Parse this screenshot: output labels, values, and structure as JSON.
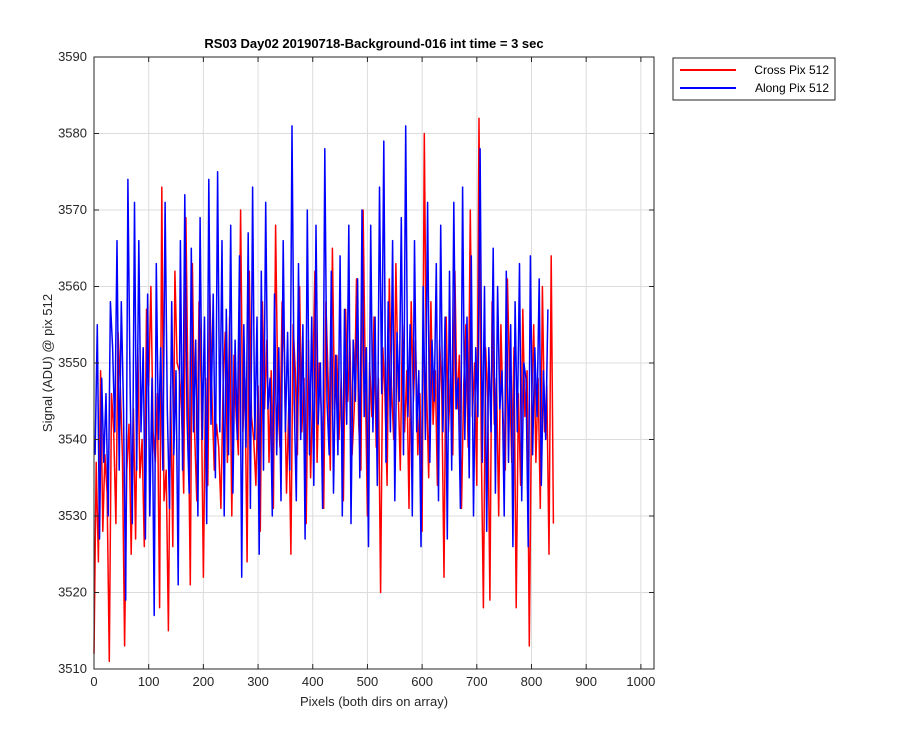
{
  "chart_data": {
    "type": "line",
    "title": "RS03 Day02 20190718-Background-016 int time = 3 sec",
    "xlabel": "Pixels (both dirs on array)",
    "ylabel": "Signal (ADU) @ pix 512",
    "xlim": [
      0,
      1024
    ],
    "ylim": [
      3510,
      3590
    ],
    "xticks": [
      0,
      100,
      200,
      300,
      400,
      500,
      600,
      700,
      800,
      900,
      1000
    ],
    "yticks": [
      3510,
      3520,
      3530,
      3540,
      3550,
      3560,
      3570,
      3580,
      3590
    ],
    "grid": true,
    "legend_position": "outside top-right",
    "series": [
      {
        "name": "Cross Pix 512",
        "color": "#ff0000",
        "x_start": 0,
        "x_step": 4,
        "values": [
          3512,
          3537,
          3524,
          3549,
          3528,
          3538,
          3533,
          3511,
          3546,
          3541,
          3529,
          3554,
          3547,
          3538,
          3513,
          3536,
          3542,
          3525,
          3544,
          3527,
          3552,
          3535,
          3540,
          3526,
          3557,
          3547,
          3560,
          3541,
          3537,
          3546,
          3518,
          3573,
          3532,
          3536,
          3515,
          3547,
          3526,
          3562,
          3550,
          3549,
          3544,
          3533,
          3569,
          3545,
          3521,
          3563,
          3541,
          3532,
          3558,
          3547,
          3522,
          3548,
          3534,
          3559,
          3545,
          3536,
          3542,
          3539,
          3531,
          3547,
          3554,
          3537,
          3556,
          3530,
          3551,
          3543,
          3538,
          3570,
          3541,
          3548,
          3524,
          3562,
          3543,
          3540,
          3534,
          3547,
          3528,
          3558,
          3544,
          3553,
          3537,
          3549,
          3531,
          3568,
          3546,
          3539,
          3558,
          3551,
          3533,
          3544,
          3525,
          3555,
          3549,
          3538,
          3560,
          3541,
          3548,
          3529,
          3553,
          3535,
          3547,
          3562,
          3537,
          3550,
          3543,
          3531,
          3558,
          3548,
          3536,
          3565,
          3544,
          3551,
          3540,
          3548,
          3532,
          3557,
          3545,
          3553,
          3538,
          3544,
          3561,
          3542,
          3536,
          3570,
          3548,
          3530,
          3550,
          3543,
          3556,
          3539,
          3548,
          3520,
          3552,
          3546,
          3534,
          3561,
          3547,
          3540,
          3563,
          3547,
          3536,
          3555,
          3541,
          3549,
          3531,
          3558,
          3545,
          3553,
          3538,
          3546,
          3528,
          3580,
          3547,
          3535,
          3558,
          3542,
          3549,
          3534,
          3553,
          3546,
          3522,
          3556,
          3541,
          3548,
          3538,
          3562,
          3544,
          3551,
          3531,
          3547,
          3555,
          3539,
          3570,
          3543,
          3550,
          3534,
          3582,
          3540,
          3518,
          3552,
          3545,
          3519,
          3558,
          3542,
          3548,
          3530,
          3555,
          3543,
          3536,
          3561,
          3548,
          3537,
          3552,
          3518,
          3546,
          3534,
          3557,
          3543,
          3549,
          3513,
          3544,
          3555,
          3537,
          3548,
          3531,
          3560,
          3541,
          3547,
          3525,
          3564,
          3529
        ]
      },
      {
        "name": "Along Pix 512",
        "color": "#0000ff",
        "x_start": 2,
        "x_step": 4,
        "values": [
          3538,
          3555,
          3527,
          3548,
          3537,
          3546,
          3530,
          3558,
          3552,
          3541,
          3566,
          3536,
          3558,
          3544,
          3519,
          3574,
          3547,
          3529,
          3571,
          3536,
          3566,
          3541,
          3552,
          3527,
          3559,
          3530,
          3548,
          3517,
          3563,
          3540,
          3552,
          3536,
          3571,
          3544,
          3531,
          3558,
          3538,
          3549,
          3521,
          3566,
          3536,
          3572,
          3543,
          3533,
          3565,
          3541,
          3553,
          3530,
          3569,
          3540,
          3556,
          3529,
          3574,
          3542,
          3559,
          3535,
          3575,
          3541,
          3566,
          3530,
          3557,
          3538,
          3568,
          3533,
          3553,
          3540,
          3564,
          3522,
          3555,
          3539,
          3567,
          3531,
          3573,
          3540,
          3556,
          3525,
          3562,
          3536,
          3571,
          3544,
          3548,
          3530,
          3559,
          3538,
          3552,
          3532,
          3566,
          3541,
          3554,
          3536,
          3581,
          3545,
          3532,
          3563,
          3540,
          3555,
          3527,
          3570,
          3538,
          3556,
          3534,
          3568,
          3542,
          3550,
          3531,
          3578,
          3545,
          3538,
          3562,
          3533,
          3551,
          3538,
          3564,
          3530,
          3557,
          3542,
          3568,
          3529,
          3553,
          3545,
          3561,
          3535,
          3570,
          3543,
          3552,
          3526,
          3568,
          3541,
          3556,
          3534,
          3573,
          3546,
          3579,
          3537,
          3558,
          3541,
          3566,
          3532,
          3554,
          3545,
          3569,
          3538,
          3581,
          3543,
          3555,
          3530,
          3566,
          3541,
          3549,
          3526,
          3560,
          3540,
          3571,
          3537,
          3553,
          3545,
          3563,
          3532,
          3568,
          3541,
          3556,
          3527,
          3562,
          3536,
          3571,
          3544,
          3548,
          3531,
          3573,
          3540,
          3556,
          3535,
          3564,
          3530,
          3552,
          3543,
          3578,
          3537,
          3560,
          3528,
          3552,
          3541,
          3565,
          3533,
          3560,
          3544,
          3549,
          3530,
          3562,
          3537,
          3555,
          3526,
          3558,
          3541,
          3563,
          3532,
          3550,
          3548,
          3526,
          3564,
          3538,
          3552,
          3543,
          3561,
          3534,
          3549,
          3540,
          3557
        ]
      }
    ]
  }
}
